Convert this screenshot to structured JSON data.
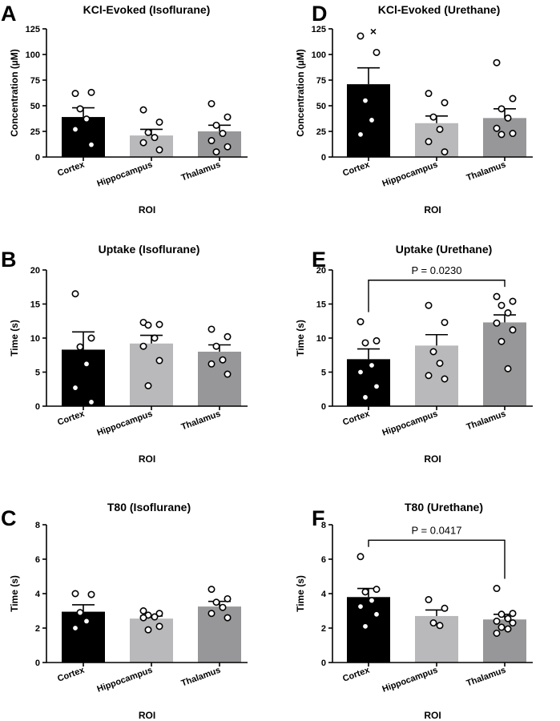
{
  "colors": {
    "cortex": "#000000",
    "hippocampus": "#b9b9bb",
    "thalamus": "#979799",
    "axis": "#000000",
    "point_fill": "#ffffff"
  },
  "chart_data": [
    {
      "panel": "A",
      "type": "bar",
      "title": "KCl-Evoked (Isoflurane)",
      "xlabel": "ROI",
      "ylabel": "Concentration (µM)",
      "ylim": [
        0,
        125
      ],
      "yticks": [
        0,
        25,
        50,
        75,
        100,
        125
      ],
      "categories": [
        "Cortex",
        "Hippocampus",
        "Thalamus"
      ],
      "values": [
        39,
        21,
        25
      ],
      "sem": [
        9,
        6,
        6
      ],
      "points": [
        [
          62,
          63,
          47,
          37,
          27,
          12
        ],
        [
          46,
          34,
          24,
          19,
          14,
          7
        ],
        [
          52,
          39,
          31,
          23,
          16,
          10,
          5
        ]
      ]
    },
    {
      "panel": "D",
      "type": "bar",
      "title": "KCl-Evoked (Urethane)",
      "xlabel": "ROI",
      "ylabel": "Concentration (µM)",
      "ylim": [
        0,
        125
      ],
      "yticks": [
        0,
        25,
        50,
        75,
        100,
        125
      ],
      "categories": [
        "Cortex",
        "Hippocampus",
        "Thalamus"
      ],
      "values": [
        71,
        33,
        38
      ],
      "sem": [
        16,
        7,
        9
      ],
      "points": [
        [
          118,
          102,
          55,
          36,
          22
        ],
        [
          62,
          53,
          39,
          27,
          15,
          5
        ],
        [
          92,
          57,
          47,
          38,
          28,
          23,
          22
        ]
      ],
      "annotation": "×"
    },
    {
      "panel": "B",
      "type": "bar",
      "title": "Uptake (Isoflurane)",
      "xlabel": "ROI",
      "ylabel": "Time (s)",
      "ylim": [
        0,
        20
      ],
      "yticks": [
        0,
        5,
        10,
        15,
        20
      ],
      "categories": [
        "Cortex",
        "Hippocampus",
        "Thalamus"
      ],
      "values": [
        8.3,
        9.2,
        8.0
      ],
      "sem": [
        2.6,
        1.2,
        1.0
      ],
      "points": [
        [
          16.5,
          10.0,
          8.7,
          6.2,
          2.7,
          0.6
        ],
        [
          12.3,
          12.0,
          11.9,
          10.0,
          8.8,
          6.7,
          3.0
        ],
        [
          11.3,
          10.2,
          8.8,
          6.8,
          6.2,
          4.7
        ]
      ]
    },
    {
      "panel": "E",
      "type": "bar",
      "title": "Uptake (Urethane)",
      "xlabel": "ROI",
      "ylabel": "Time (s)",
      "ylim": [
        0,
        20
      ],
      "yticks": [
        0,
        5,
        10,
        15,
        20
      ],
      "categories": [
        "Cortex",
        "Hippocampus",
        "Thalamus"
      ],
      "values": [
        6.9,
        8.9,
        12.3
      ],
      "sem": [
        1.5,
        1.6,
        1.1
      ],
      "points": [
        [
          12.4,
          9.6,
          9.3,
          6.0,
          5.0,
          2.9,
          1.3
        ],
        [
          14.8,
          12.3,
          8.0,
          6.3,
          4.5,
          4.0
        ],
        [
          16.1,
          15.4,
          14.8,
          13.7,
          12.2,
          11.2,
          9.5,
          5.5
        ]
      ],
      "significance": {
        "from": 0,
        "to": 2,
        "label": "P = 0.0230",
        "y": 18.5
      }
    },
    {
      "panel": "C",
      "type": "bar",
      "title": "T80 (Isoflurane)",
      "xlabel": "ROI",
      "ylabel": "Time (s)",
      "ylim": [
        0,
        8
      ],
      "yticks": [
        0,
        2,
        4,
        6,
        8
      ],
      "categories": [
        "Cortex",
        "Hippocampus",
        "Thalamus"
      ],
      "values": [
        2.95,
        2.55,
        3.25
      ],
      "sem": [
        0.4,
        0.15,
        0.3
      ],
      "points": [
        [
          4.0,
          3.95,
          2.9,
          2.4,
          2.0
        ],
        [
          3.0,
          2.85,
          2.75,
          2.65,
          2.6,
          2.1,
          1.9
        ],
        [
          4.25,
          3.7,
          3.5,
          3.2,
          2.85,
          2.6
        ]
      ]
    },
    {
      "panel": "F",
      "type": "bar",
      "title": "T80 (Urethane)",
      "xlabel": "ROI",
      "ylabel": "Time (s)",
      "ylim": [
        0,
        8
      ],
      "yticks": [
        0,
        2,
        4,
        6,
        8
      ],
      "categories": [
        "Cortex",
        "Hippocampus",
        "Thalamus"
      ],
      "values": [
        3.8,
        2.7,
        2.5
      ],
      "sem": [
        0.5,
        0.35,
        0.3
      ],
      "points": [
        [
          6.15,
          4.25,
          4.1,
          3.6,
          3.25,
          2.8,
          2.1
        ],
        [
          3.65,
          3.15,
          2.3,
          2.15
        ],
        [
          4.3,
          2.85,
          2.8,
          2.55,
          2.4,
          2.3,
          2.05,
          1.95,
          1.7
        ]
      ],
      "significance": {
        "from": 0,
        "to": 2,
        "label": "P = 0.0417",
        "y": 7.1
      }
    }
  ]
}
